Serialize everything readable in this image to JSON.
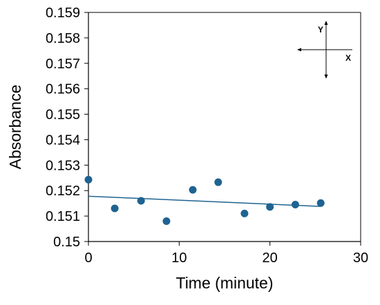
{
  "chart_data": {
    "type": "scatter",
    "title": "",
    "xlabel": "Time (minute)",
    "ylabel": "Absorbance",
    "xlim": [
      0,
      30
    ],
    "ylim": [
      0.15,
      0.159
    ],
    "xticks": [
      0,
      10,
      20,
      30
    ],
    "xtick_labels": [
      "0",
      "10",
      "20",
      "30"
    ],
    "yticks": [
      0.15,
      0.151,
      0.152,
      0.153,
      0.154,
      0.155,
      0.156,
      0.157,
      0.158,
      0.159
    ],
    "ytick_labels": [
      "0.15",
      "0.151",
      "0.152",
      "0.153",
      "0.154",
      "0.155",
      "0.156",
      "0.157",
      "0.158",
      "0.159"
    ],
    "grid": false,
    "legend": "none",
    "marker_color": "#1f6391",
    "trendline_color": "#1f6391",
    "points": [
      {
        "x": 0.0,
        "y": 0.15243
      },
      {
        "x": 2.9,
        "y": 0.1513
      },
      {
        "x": 5.8,
        "y": 0.1516
      },
      {
        "x": 8.6,
        "y": 0.1508
      },
      {
        "x": 11.5,
        "y": 0.15203
      },
      {
        "x": 14.3,
        "y": 0.15233
      },
      {
        "x": 17.2,
        "y": 0.1511
      },
      {
        "x": 20.0,
        "y": 0.15136
      },
      {
        "x": 22.8,
        "y": 0.15145
      },
      {
        "x": 25.6,
        "y": 0.15151
      }
    ],
    "trendline": {
      "type": "linear",
      "x": [
        0,
        25.6
      ],
      "y": [
        0.15178,
        0.15138
      ]
    },
    "inset": {
      "y_label": "Y",
      "x_label": "X"
    }
  }
}
